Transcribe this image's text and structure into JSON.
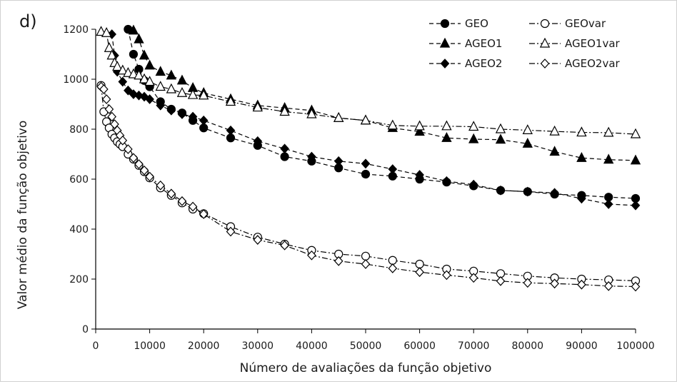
{
  "panel_label": "d)",
  "chart_data": {
    "type": "line",
    "title": "",
    "xlabel": "Número de avaliações da função objetivo",
    "ylabel": "Valor médio da função objetivo",
    "xlim": [
      0,
      100000
    ],
    "ylim": [
      0,
      1200
    ],
    "xticks": [
      0,
      10000,
      20000,
      30000,
      40000,
      50000,
      60000,
      70000,
      80000,
      90000,
      100000
    ],
    "yticks": [
      0,
      200,
      400,
      600,
      800,
      1000,
      1200
    ],
    "xtick_labels": [
      "0",
      "10000",
      "20000",
      "30000",
      "40000",
      "50000",
      "60000",
      "70000",
      "80000",
      "90000",
      "100000"
    ],
    "ytick_labels": [
      "0",
      "200",
      "400",
      "600",
      "800",
      "1000",
      "1200"
    ],
    "grid": false,
    "legend_position": "top-right",
    "series": [
      {
        "name": "GEO",
        "marker": "circle",
        "fill": "filled",
        "dash": "dashed",
        "x": [
          6000,
          7000,
          8000,
          9000,
          10000,
          12000,
          14000,
          16000,
          18000,
          20000,
          25000,
          30000,
          35000,
          40000,
          45000,
          50000,
          55000,
          60000,
          65000,
          70000,
          75000,
          80000,
          85000,
          90000,
          95000,
          100000
        ],
        "y": [
          1200,
          1100,
          1040,
          995,
          970,
          910,
          880,
          865,
          835,
          805,
          765,
          735,
          690,
          672,
          645,
          620,
          612,
          600,
          588,
          573,
          555,
          550,
          540,
          535,
          528,
          523
        ]
      },
      {
        "name": "AGEO1",
        "marker": "triangle",
        "fill": "filled",
        "dash": "dashed",
        "x": [
          7000,
          8000,
          9000,
          10000,
          12000,
          14000,
          16000,
          18000,
          20000,
          25000,
          30000,
          35000,
          40000,
          45000,
          50000,
          55000,
          60000,
          65000,
          70000,
          75000,
          80000,
          85000,
          90000,
          95000,
          100000
        ],
        "y": [
          1195,
          1160,
          1095,
          1055,
          1030,
          1015,
          995,
          965,
          945,
          920,
          895,
          885,
          875,
          845,
          835,
          805,
          790,
          765,
          760,
          758,
          742,
          710,
          685,
          678,
          675
        ]
      },
      {
        "name": "AGEO2",
        "marker": "diamond",
        "fill": "filled",
        "dash": "dashed",
        "x": [
          3000,
          3500,
          4000,
          5000,
          6000,
          7000,
          8000,
          9000,
          10000,
          12000,
          14000,
          16000,
          18000,
          20000,
          25000,
          30000,
          35000,
          40000,
          45000,
          50000,
          55000,
          60000,
          65000,
          70000,
          75000,
          80000,
          85000,
          90000,
          95000,
          100000
        ],
        "y": [
          1180,
          1095,
          1030,
          990,
          955,
          940,
          935,
          930,
          920,
          895,
          875,
          860,
          850,
          835,
          795,
          752,
          722,
          690,
          672,
          662,
          640,
          617,
          592,
          578,
          555,
          550,
          545,
          522,
          500,
          495
        ]
      },
      {
        "name": "GEOvar",
        "marker": "circle",
        "fill": "hollow",
        "dash": "dashdot",
        "x": [
          1000,
          1500,
          2000,
          2500,
          3000,
          3500,
          4000,
          4500,
          5000,
          6000,
          7000,
          8000,
          9000,
          10000,
          12000,
          14000,
          16000,
          18000,
          20000,
          25000,
          30000,
          35000,
          40000,
          45000,
          50000,
          55000,
          60000,
          65000,
          70000,
          75000,
          80000,
          85000,
          90000,
          95000,
          100000
        ],
        "y": [
          975,
          870,
          830,
          805,
          780,
          765,
          750,
          740,
          730,
          700,
          680,
          655,
          630,
          605,
          565,
          535,
          505,
          480,
          462,
          410,
          368,
          340,
          315,
          300,
          292,
          275,
          260,
          240,
          232,
          222,
          212,
          205,
          200,
          197,
          193
        ]
      },
      {
        "name": "AGEO1var",
        "marker": "triangle",
        "fill": "hollow",
        "dash": "dashdot",
        "x": [
          1000,
          2000,
          2500,
          3000,
          3500,
          4000,
          5000,
          6000,
          7000,
          8000,
          9000,
          10000,
          12000,
          14000,
          16000,
          18000,
          20000,
          25000,
          30000,
          35000,
          40000,
          45000,
          50000,
          55000,
          60000,
          65000,
          70000,
          75000,
          80000,
          85000,
          90000,
          95000,
          100000
        ],
        "y": [
          1190,
          1185,
          1125,
          1095,
          1065,
          1050,
          1035,
          1025,
          1020,
          1015,
          1000,
          990,
          970,
          960,
          945,
          937,
          935,
          910,
          887,
          870,
          860,
          845,
          835,
          815,
          812,
          812,
          810,
          800,
          796,
          791,
          787,
          786,
          780
        ]
      },
      {
        "name": "AGEO2var",
        "marker": "diamond",
        "fill": "hollow",
        "dash": "dashdot",
        "x": [
          1000,
          1500,
          2000,
          2500,
          3000,
          3500,
          4000,
          4500,
          5000,
          6000,
          7000,
          8000,
          9000,
          10000,
          12000,
          14000,
          16000,
          18000,
          20000,
          25000,
          30000,
          35000,
          40000,
          45000,
          50000,
          55000,
          60000,
          65000,
          70000,
          75000,
          80000,
          85000,
          90000,
          95000,
          100000
        ],
        "y": [
          970,
          960,
          920,
          880,
          850,
          820,
          795,
          775,
          755,
          720,
          685,
          660,
          635,
          610,
          575,
          542,
          512,
          490,
          460,
          390,
          357,
          335,
          295,
          272,
          260,
          243,
          228,
          216,
          205,
          192,
          185,
          182,
          178,
          172,
          170
        ]
      }
    ]
  }
}
